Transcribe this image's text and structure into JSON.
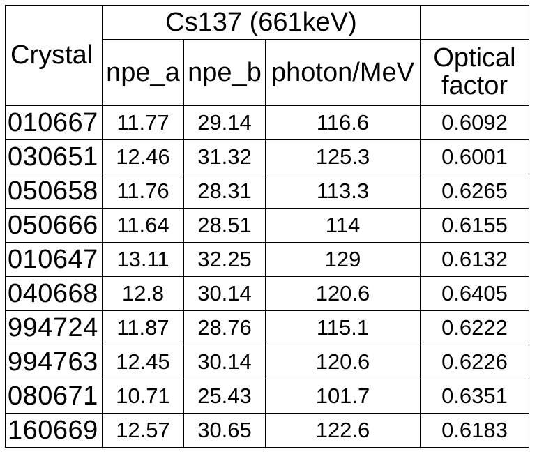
{
  "table": {
    "headers": {
      "crystal": "Crystal",
      "source_group": "Cs137 (661keV)",
      "npe_a": "npe_a",
      "npe_b": "npe_b",
      "photon_per_mev": "photon/MeV",
      "optical_factor_line1": "Optical",
      "optical_factor_line2": "factor"
    },
    "rows": [
      {
        "crystal": "010667",
        "npe_a": "11.77",
        "npe_b": "29.14",
        "photon_per_mev": "116.6",
        "optical_factor": "0.6092"
      },
      {
        "crystal": "030651",
        "npe_a": "12.46",
        "npe_b": "31.32",
        "photon_per_mev": "125.3",
        "optical_factor": "0.6001"
      },
      {
        "crystal": "050658",
        "npe_a": "11.76",
        "npe_b": "28.31",
        "photon_per_mev": "113.3",
        "optical_factor": "0.6265"
      },
      {
        "crystal": "050666",
        "npe_a": "11.64",
        "npe_b": "28.51",
        "photon_per_mev": "114",
        "optical_factor": "0.6155"
      },
      {
        "crystal": "010647",
        "npe_a": "13.11",
        "npe_b": "32.25",
        "photon_per_mev": "129",
        "optical_factor": "0.6132"
      },
      {
        "crystal": "040668",
        "npe_a": "12.8",
        "npe_b": "30.14",
        "photon_per_mev": "120.6",
        "optical_factor": "0.6405"
      },
      {
        "crystal": "994724",
        "npe_a": "11.87",
        "npe_b": "28.76",
        "photon_per_mev": "115.1",
        "optical_factor": "0.6222"
      },
      {
        "crystal": "994763",
        "npe_a": "12.45",
        "npe_b": "30.14",
        "photon_per_mev": "120.6",
        "optical_factor": "0.6226"
      },
      {
        "crystal": "080671",
        "npe_a": "10.71",
        "npe_b": "25.43",
        "photon_per_mev": "101.7",
        "optical_factor": "0.6351"
      },
      {
        "crystal": "160669",
        "npe_a": "12.57",
        "npe_b": "30.65",
        "photon_per_mev": "122.6",
        "optical_factor": "0.6183"
      }
    ]
  }
}
